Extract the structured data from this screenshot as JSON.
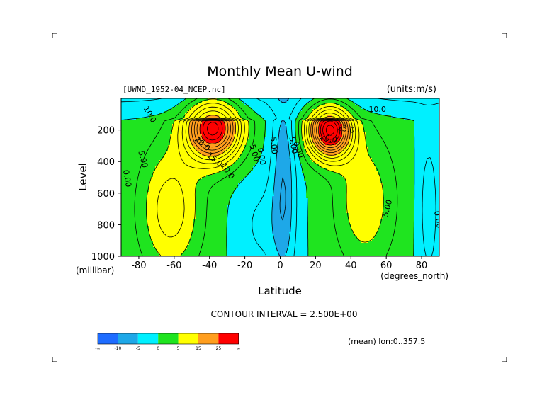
{
  "chart_data": {
    "type": "heatmap",
    "title": "Monthly Mean U-wind",
    "dataset_label": "[UWND_1952-04_NCEP.nc]",
    "units_label": "(units:m/s)",
    "xlabel": "Latitude",
    "x_units": "(degrees_north)",
    "ylabel": "Level",
    "y_units": "(millibar)",
    "xlim": [
      -90,
      90
    ],
    "ylim": [
      1000,
      0
    ],
    "x_ticks": [
      -80,
      -60,
      -40,
      -20,
      0,
      20,
      40,
      60,
      80
    ],
    "y_ticks": [
      200,
      400,
      600,
      800,
      1000
    ],
    "contour_interval_text": "CONTOUR INTERVAL = 2.500E+00",
    "subset_text": "(mean) lon:0..357.5",
    "colorbar": {
      "colors": [
        "#1e6cff",
        "#1ea8e8",
        "#00f0ff",
        "#1fe41f",
        "#ffff00",
        "#ff9e1e",
        "#ff0000"
      ],
      "labels": [
        "-∞",
        "-10",
        "-5",
        "0",
        "5",
        "15",
        "25",
        "∞"
      ]
    },
    "contour_labels": [
      {
        "text": "10.0",
        "x": -75,
        "y": 110,
        "rot": 60
      },
      {
        "text": "5.00",
        "x": -79,
        "y": 390,
        "rot": 75
      },
      {
        "text": "0.00",
        "x": -88,
        "y": 510,
        "rot": 80
      },
      {
        "text": "20.0",
        "x": -45,
        "y": 300,
        "rot": 40
      },
      {
        "text": "15.0",
        "x": -38,
        "y": 400,
        "rot": 40
      },
      {
        "text": "10.0",
        "x": -31,
        "y": 470,
        "rot": 55
      },
      {
        "text": "5.00",
        "x": -16,
        "y": 350,
        "rot": 75
      },
      {
        "text": "0.00",
        "x": -12,
        "y": 370,
        "rot": 80
      },
      {
        "text": "5.00",
        "x": -5,
        "y": 300,
        "rot": 85
      },
      {
        "text": "5.00",
        "x": 6,
        "y": 300,
        "rot": 80
      },
      {
        "text": "0.00",
        "x": 9,
        "y": 330,
        "rot": 70
      },
      {
        "text": "20.0",
        "x": 27,
        "y": 270,
        "rot": 15
      },
      {
        "text": "25.0",
        "x": 37,
        "y": 210,
        "rot": 10
      },
      {
        "text": "10.0",
        "x": 55,
        "y": 85,
        "rot": 0
      },
      {
        "text": "5.00",
        "x": 62,
        "y": 700,
        "rot": -75
      },
      {
        "text": "0.00",
        "x": 88,
        "y": 770,
        "rot": 80
      }
    ]
  }
}
